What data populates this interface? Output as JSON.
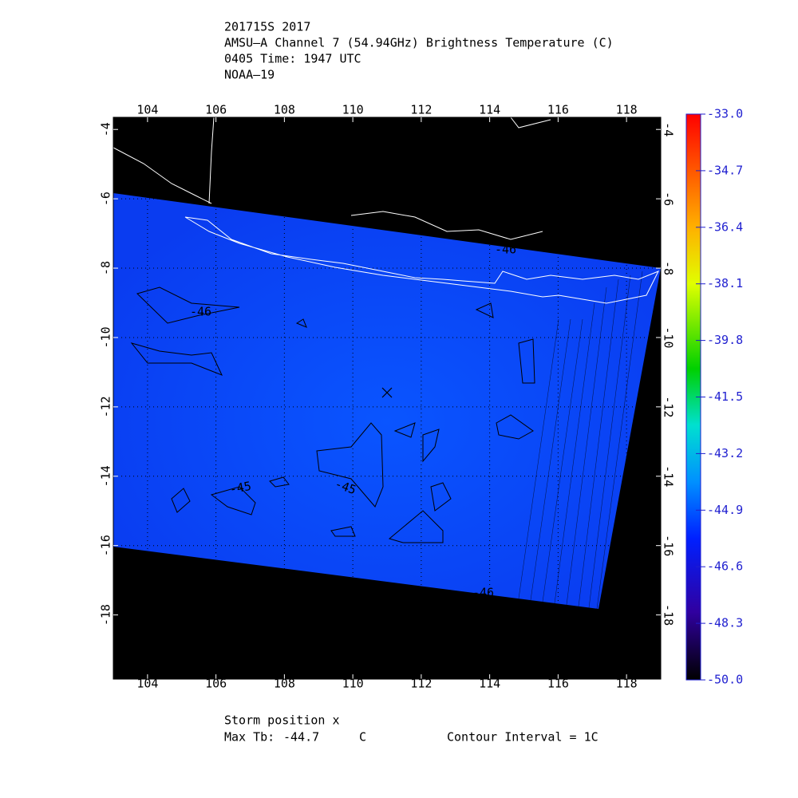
{
  "header": {
    "lines": [
      "201715S 2017",
      "AMSU–A Channel 7 (54.94GHz) Brightness Temperature (C)",
      "0405 Time: 1947 UTC",
      "NOAA–19"
    ]
  },
  "map": {
    "xlim": [
      103,
      119
    ],
    "ylim": [
      -3.65,
      -19.85
    ],
    "xticks": [
      104,
      106,
      108,
      110,
      112,
      114,
      116,
      118
    ],
    "yticks": [
      -4,
      -6,
      -8,
      -10,
      -12,
      -14,
      -16,
      -18
    ],
    "contour_labels": [
      "-46",
      "-45",
      "-45",
      "-46",
      "-46"
    ]
  },
  "colorbar": {
    "lim": [
      -50,
      -33
    ],
    "ticks": [
      {
        "value": -33,
        "label": "-33.0"
      },
      {
        "value": -34.7,
        "label": "-34.7"
      },
      {
        "value": -36.4,
        "label": "-36.4"
      },
      {
        "value": -38.1,
        "label": "-38.1"
      },
      {
        "value": -39.8,
        "label": "-39.8"
      },
      {
        "value": -41.5,
        "label": "-41.5"
      },
      {
        "value": -43.2,
        "label": "-43.2"
      },
      {
        "value": -44.9,
        "label": "-44.9"
      },
      {
        "value": -46.6,
        "label": "-46.6"
      },
      {
        "value": -48.3,
        "label": "-48.3"
      },
      {
        "value": -50,
        "label": "-50.0"
      }
    ]
  },
  "footer": {
    "storm": "Storm position x",
    "max_label": "Max Tb:",
    "max_value": -44.7,
    "unit": "C",
    "contour": "Contour Interval = 1C"
  }
}
